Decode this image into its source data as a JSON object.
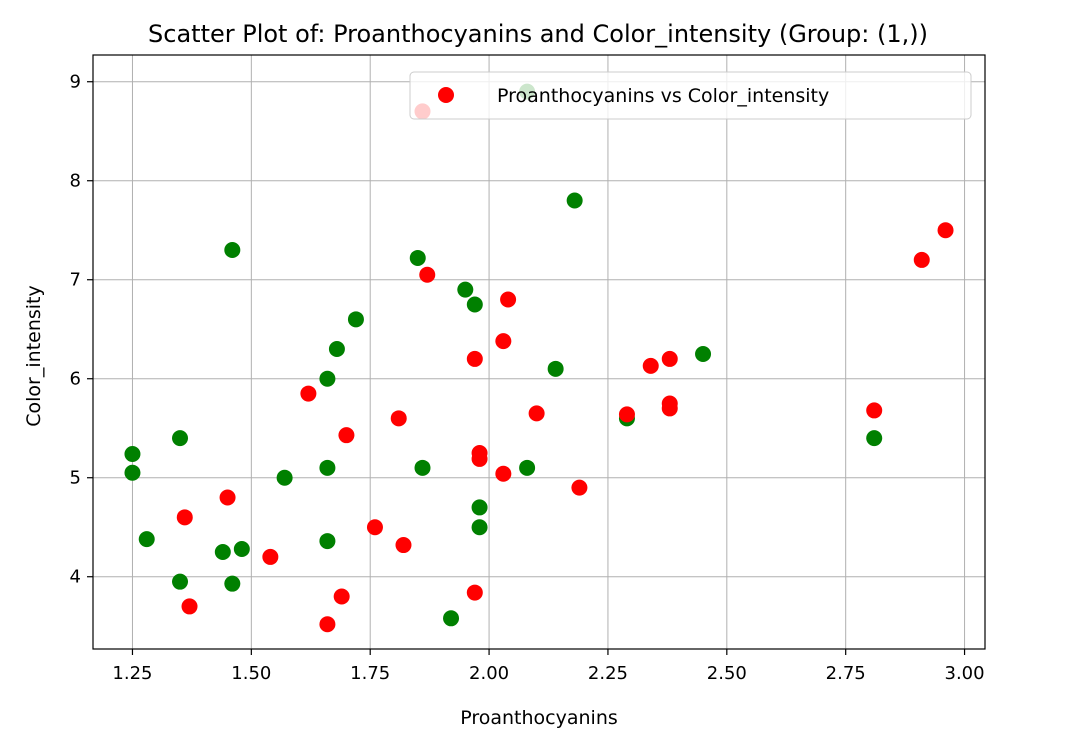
{
  "chart_data": {
    "type": "scatter",
    "title": "Scatter Plot of: Proanthocyanins and Color_intensity (Group: (1,))",
    "xlabel": "Proanthocyanins",
    "ylabel": "Color_intensity",
    "xlim": [
      1.167,
      3.043
    ],
    "ylim": [
      3.27,
      9.27
    ],
    "xticks": [
      "1.25",
      "1.50",
      "1.75",
      "2.00",
      "2.25",
      "2.50",
      "2.75",
      "3.00"
    ],
    "xtick_values": [
      1.25,
      1.5,
      1.75,
      2.0,
      2.25,
      2.5,
      2.75,
      3.0
    ],
    "yticks": [
      "4",
      "5",
      "6",
      "7",
      "8",
      "9"
    ],
    "ytick_values": [
      4,
      5,
      6,
      7,
      8,
      9
    ],
    "grid": true,
    "legend_position": "top-right",
    "legend": [
      {
        "label": "Proanthocyanins vs Color_intensity",
        "color": "#ff0000"
      }
    ],
    "series": [
      {
        "color": "#008000",
        "points": [
          [
            1.25,
            5.24
          ],
          [
            1.25,
            5.05
          ],
          [
            1.28,
            4.38
          ],
          [
            1.35,
            5.4
          ],
          [
            1.35,
            3.95
          ],
          [
            1.44,
            4.25
          ],
          [
            1.46,
            3.93
          ],
          [
            1.46,
            7.3
          ],
          [
            1.48,
            4.28
          ],
          [
            1.57,
            5.0
          ],
          [
            1.66,
            6.0
          ],
          [
            1.66,
            5.1
          ],
          [
            1.66,
            4.36
          ],
          [
            1.68,
            6.3
          ],
          [
            1.72,
            6.6
          ],
          [
            1.85,
            7.22
          ],
          [
            1.86,
            5.1
          ],
          [
            1.92,
            3.58
          ],
          [
            1.95,
            6.9
          ],
          [
            1.97,
            6.75
          ],
          [
            1.98,
            4.7
          ],
          [
            1.98,
            4.5
          ],
          [
            2.08,
            5.1
          ],
          [
            2.08,
            8.9
          ],
          [
            2.14,
            6.1
          ],
          [
            2.18,
            7.8
          ],
          [
            2.29,
            5.6
          ],
          [
            2.45,
            6.25
          ],
          [
            2.81,
            5.4
          ]
        ]
      },
      {
        "name": "Proanthocyanins vs Color_intensity",
        "color": "#ff0000",
        "points": [
          [
            1.36,
            4.6
          ],
          [
            1.37,
            3.7
          ],
          [
            1.45,
            4.8
          ],
          [
            1.54,
            4.2
          ],
          [
            1.62,
            5.85
          ],
          [
            1.66,
            3.52
          ],
          [
            1.69,
            3.8
          ],
          [
            1.7,
            5.43
          ],
          [
            1.76,
            4.5
          ],
          [
            1.81,
            5.6
          ],
          [
            1.82,
            4.32
          ],
          [
            1.86,
            8.7
          ],
          [
            1.87,
            7.05
          ],
          [
            1.97,
            6.2
          ],
          [
            1.97,
            3.84
          ],
          [
            1.98,
            5.25
          ],
          [
            1.98,
            5.19
          ],
          [
            2.03,
            6.38
          ],
          [
            2.03,
            5.04
          ],
          [
            2.04,
            6.8
          ],
          [
            2.1,
            5.65
          ],
          [
            2.19,
            4.9
          ],
          [
            2.29,
            5.64
          ],
          [
            2.34,
            6.13
          ],
          [
            2.38,
            6.2
          ],
          [
            2.38,
            5.75
          ],
          [
            2.38,
            5.7
          ],
          [
            2.81,
            5.68
          ],
          [
            2.91,
            7.2
          ],
          [
            2.96,
            7.5
          ]
        ]
      }
    ]
  }
}
